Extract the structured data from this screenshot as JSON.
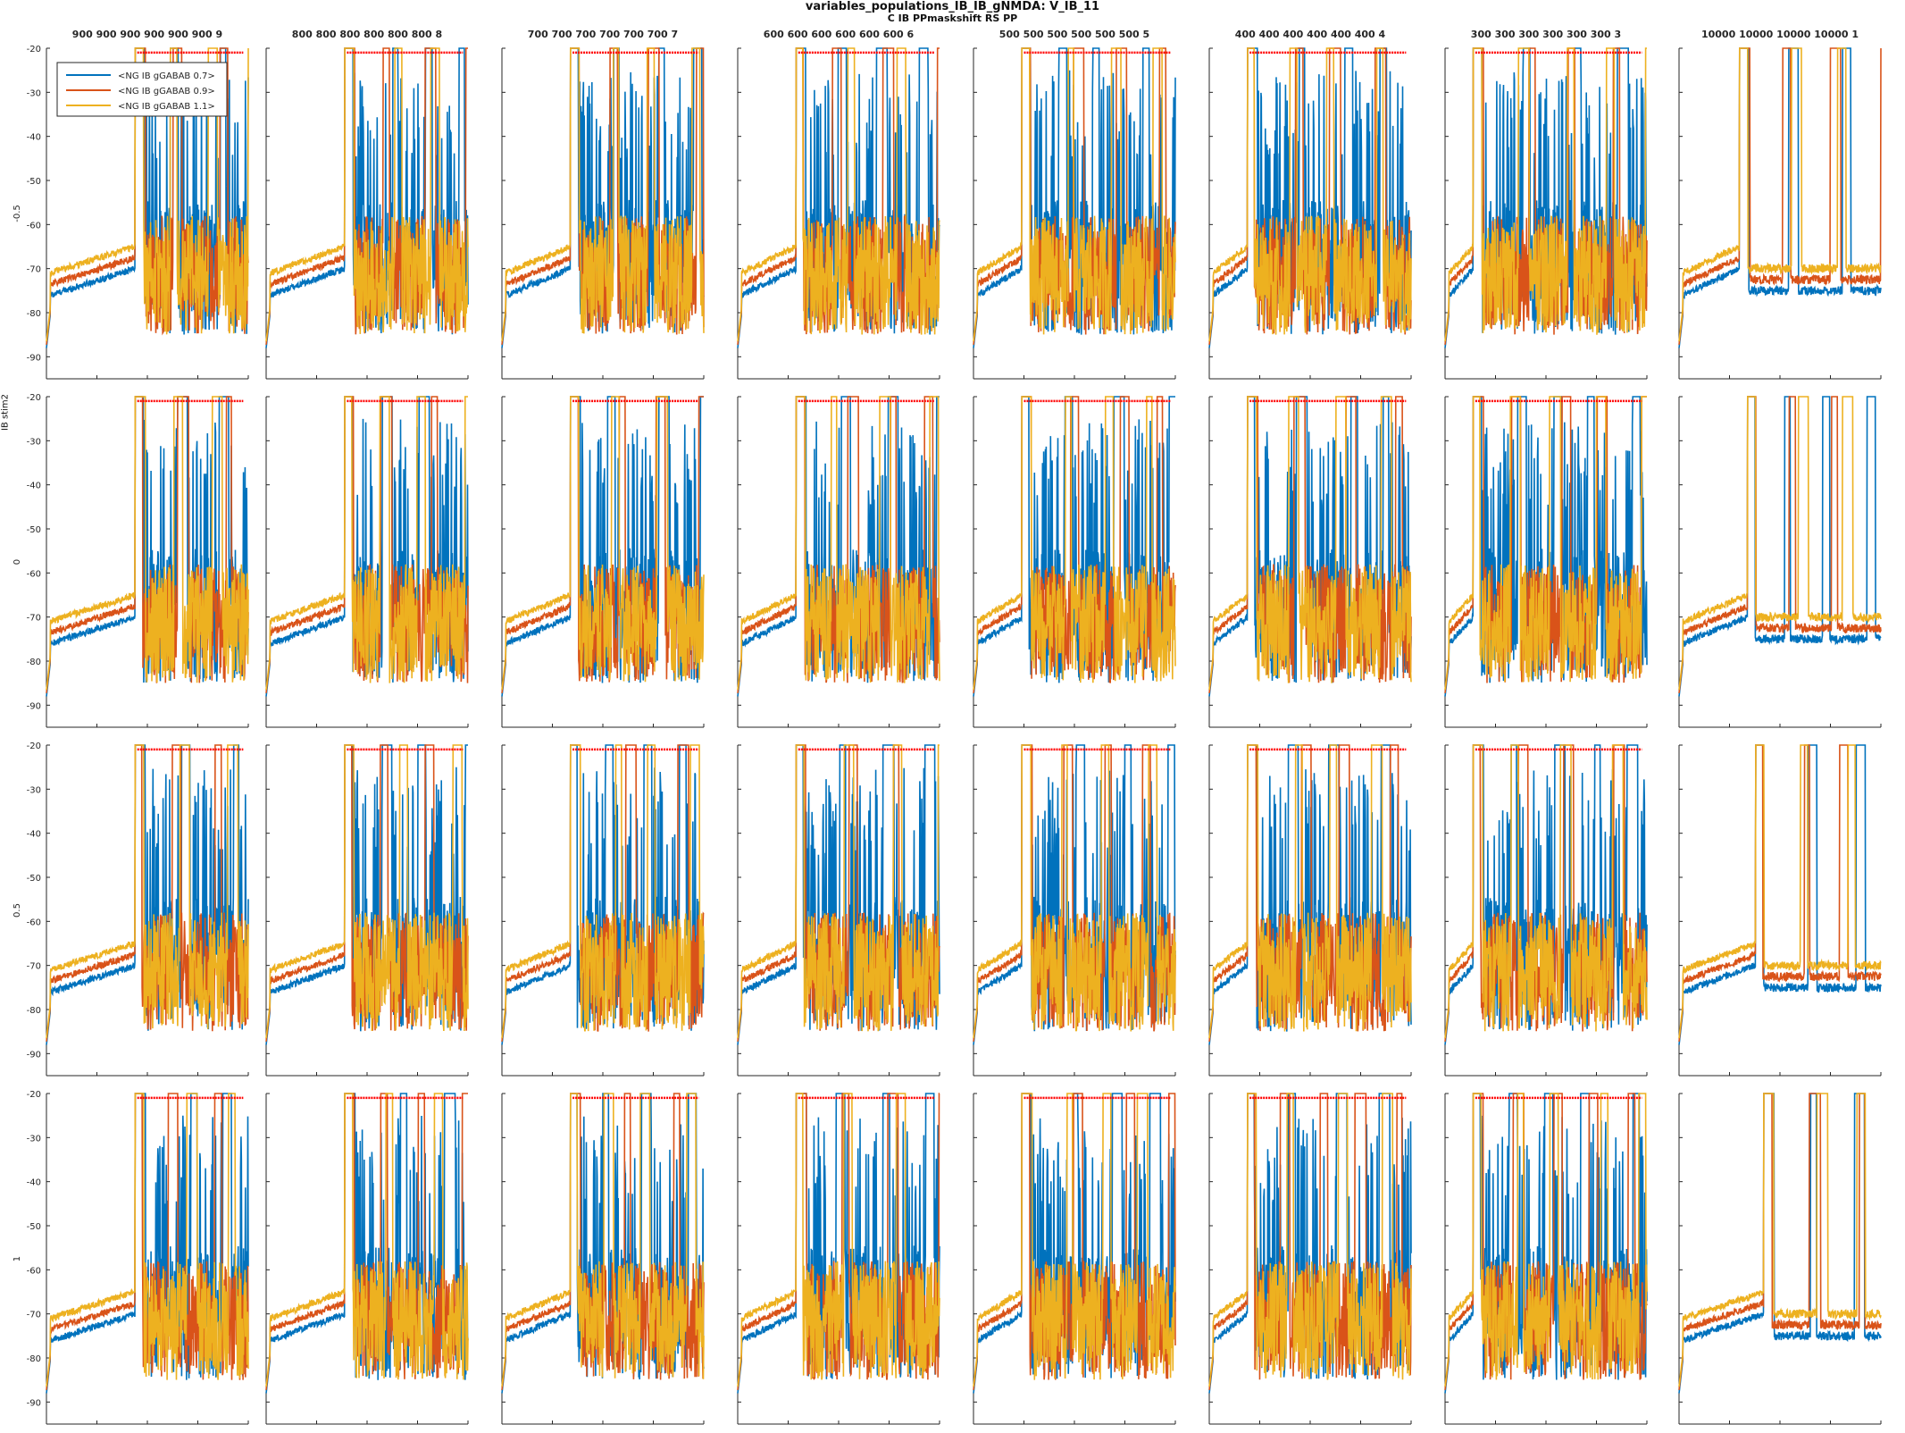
{
  "figure": {
    "title": "variables_populations_IB_IB_gNMDA: V_IB_11",
    "subtitle": "C IB PPmaskshift RS PP",
    "row_group_label": "IB stim2"
  },
  "chart_data": {
    "type": "line",
    "layout": "grid 4 rows x 8 columns",
    "column_titles": [
      "900 900 900 900 900 900 9",
      "800 800 800 800 800 800 8",
      "700 700 700 700 700 700 7",
      "600 600 600 600 600 600 6",
      "500 500 500 500 500 500 5",
      "400 400 400 400 400 400 4",
      "300 300 300 300 300 300 3",
      "10000 10000 10000 10000 1"
    ],
    "column_stim_onset": [
      900,
      800,
      700,
      600,
      500,
      400,
      300,
      null
    ],
    "row_labels": [
      "-0.5",
      "0",
      "0.5",
      "1"
    ],
    "xlim": [
      0,
      2000
    ],
    "ylim": [
      -95,
      -20
    ],
    "x_ticks": [
      0,
      500,
      1000,
      1500,
      2000
    ],
    "x_ticks_full_set": [
      0,
      500,
      900,
      1000,
      1500,
      2000
    ],
    "y_ticks": [
      -20,
      -30,
      -40,
      -50,
      -60,
      -70,
      -80,
      -90
    ],
    "legend": {
      "placement": "top-left",
      "entries": [
        "<NG IB gGABAB 0.7>",
        "<NG IB gGABAB 0.9>",
        "<NG IB gGABAB 1.1>"
      ]
    },
    "series": [
      {
        "name": "<NG IB gGABAB 0.7>",
        "color": "#0072BD"
      },
      {
        "name": "<NG IB gGABAB 0.9>",
        "color": "#D95319"
      },
      {
        "name": "<NG IB gGABAB 1.1>",
        "color": "#EDB120"
      }
    ],
    "marker_line": {
      "color": "#FF0000",
      "y": -21,
      "x_end": 1950
    },
    "trace_shape": {
      "resting_start": -88,
      "ramp_from": -76,
      "ramp_to": -70,
      "burst_peak": -20,
      "post_burst_low": -83,
      "spiking_range": [
        -85,
        -55
      ],
      "t_end": 2000
    }
  }
}
